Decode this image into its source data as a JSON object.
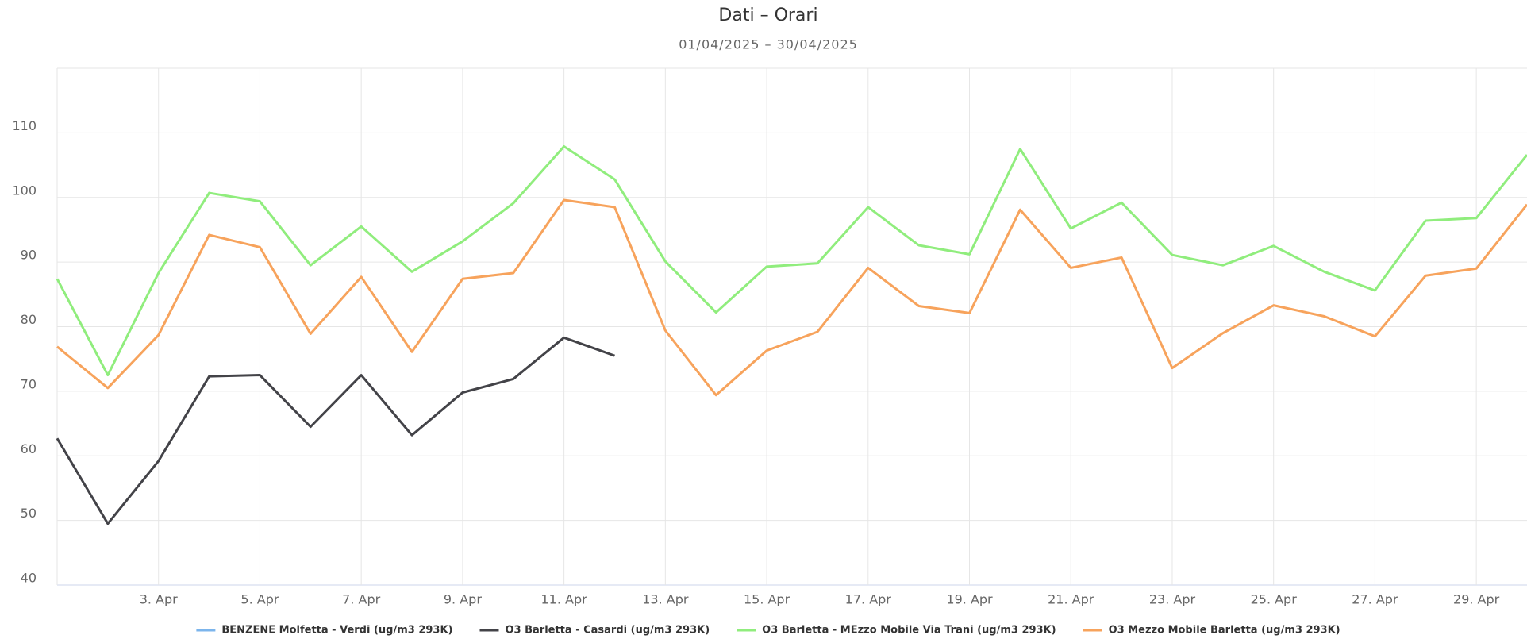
{
  "chart_data": {
    "type": "line",
    "title": "Dati – Orari",
    "subtitle": "01/04/2025 – 30/04/2025",
    "categories": [
      null,
      null,
      "3. Apr",
      null,
      "5. Apr",
      null,
      "7. Apr",
      null,
      "9. Apr",
      null,
      "11. Apr",
      null,
      "13. Apr",
      null,
      "15. Apr",
      null,
      "17. Apr",
      null,
      "19. Apr",
      null,
      "21. Apr",
      null,
      "23. Apr",
      null,
      "25. Apr",
      null,
      "27. Apr",
      null,
      "29. Apr",
      null
    ],
    "ylim": [
      40,
      120
    ],
    "yticks": [
      40,
      50,
      60,
      70,
      80,
      90,
      100,
      110
    ],
    "grid": true,
    "legend": "bottom",
    "series": [
      {
        "name": "BENZENE Molfetta - Verdi (ug/m3 293K)",
        "color": "#7cb5ec",
        "values": [
          null,
          null,
          null,
          null,
          null,
          null,
          null,
          null,
          null,
          null,
          null,
          null,
          null,
          null,
          null,
          null,
          null,
          null,
          null,
          null,
          null,
          null,
          null,
          null,
          null,
          null,
          null,
          null,
          null,
          null
        ]
      },
      {
        "name": "O3 Barletta - Casardi (ug/m3 293K)",
        "color": "#434348",
        "values": [
          62.7,
          49.5,
          59.2,
          72.3,
          72.5,
          64.5,
          72.5,
          63.2,
          69.8,
          71.9,
          78.3,
          75.5,
          null,
          null,
          null,
          null,
          null,
          null,
          null,
          null,
          null,
          null,
          null,
          null,
          null,
          null,
          null,
          null,
          null,
          null
        ]
      },
      {
        "name": "O3 Barletta - MEzzo Mobile Via Trani (ug/m3 293K)",
        "color": "#90ed7d",
        "values": [
          87.4,
          72.5,
          88.3,
          100.7,
          99.4,
          89.5,
          95.5,
          88.5,
          93.2,
          99.1,
          107.9,
          102.8,
          90.1,
          82.2,
          89.3,
          89.8,
          98.5,
          92.6,
          91.2,
          107.5,
          95.2,
          99.2,
          91.1,
          89.5,
          92.5,
          88.5,
          85.6,
          96.4,
          96.8,
          106.6
        ]
      },
      {
        "name": "O3 Mezzo Mobile Barletta (ug/m3 293K)",
        "color": "#f7a35c",
        "values": [
          76.9,
          70.5,
          78.7,
          94.2,
          92.3,
          78.9,
          87.7,
          76.1,
          87.4,
          88.3,
          99.6,
          98.5,
          79.4,
          69.4,
          76.3,
          79.2,
          89.1,
          83.2,
          82.1,
          98.1,
          89.1,
          90.7,
          73.6,
          79.0,
          83.3,
          81.6,
          78.5,
          87.9,
          89.0,
          98.9
        ]
      }
    ]
  }
}
